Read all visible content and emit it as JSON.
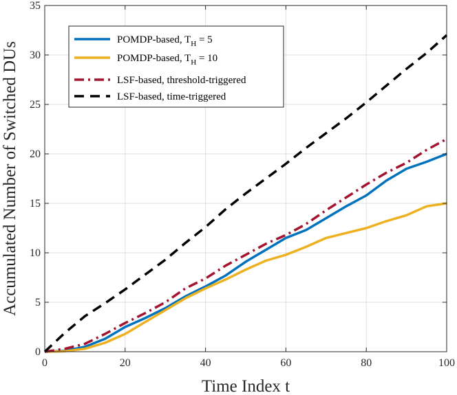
{
  "chart_data": {
    "type": "line",
    "title": "",
    "xlabel": "Time Index t",
    "ylabel": "Accumulated Number of Switched DUs",
    "xlim": [
      0,
      100
    ],
    "ylim": [
      0,
      35
    ],
    "xticks": [
      0,
      20,
      40,
      60,
      80,
      100
    ],
    "yticks": [
      0,
      5,
      10,
      15,
      20,
      25,
      30,
      35
    ],
    "grid": true,
    "legend_position": "top-left",
    "x": [
      0,
      5,
      10,
      15,
      20,
      25,
      30,
      35,
      40,
      45,
      50,
      55,
      60,
      65,
      70,
      75,
      80,
      85,
      90,
      95,
      100
    ],
    "series": [
      {
        "name": "POMDP-based, T_H = 5",
        "legend_main": "POMDP-based, T",
        "legend_sub": "H",
        "legend_tail": " = 5",
        "color": "#0072BD",
        "dash": "solid",
        "values": [
          0,
          0.1,
          0.5,
          1.3,
          2.5,
          3.4,
          4.4,
          5.6,
          6.6,
          7.7,
          9.1,
          10.3,
          11.5,
          12.3,
          13.5,
          14.7,
          15.8,
          17.3,
          18.5,
          19.2,
          20
        ]
      },
      {
        "name": "POMDP-based, T_H = 10",
        "legend_main": "POMDP-based, T",
        "legend_sub": "H",
        "legend_tail": " = 10",
        "color": "#EDB120",
        "dash": "solid",
        "values": [
          0,
          0.05,
          0.3,
          0.9,
          1.8,
          3.0,
          4.2,
          5.4,
          6.4,
          7.3,
          8.3,
          9.2,
          9.8,
          10.6,
          11.5,
          12.0,
          12.5,
          13.2,
          13.8,
          14.7,
          15
        ]
      },
      {
        "name": "LSF-based, threshold-triggered",
        "legend_main": "LSF-based, threshold-triggered",
        "legend_sub": "",
        "legend_tail": "",
        "color": "#A2142F",
        "dash": "dashdot",
        "values": [
          0,
          0.3,
          0.8,
          1.8,
          2.9,
          3.9,
          5.0,
          6.4,
          7.4,
          8.7,
          9.8,
          10.9,
          11.8,
          12.9,
          14.3,
          15.6,
          16.9,
          18.1,
          19.1,
          20.4,
          21.5
        ]
      },
      {
        "name": "LSF-based, time-triggered",
        "legend_main": "LSF-based, time-triggered",
        "legend_sub": "",
        "legend_tail": "",
        "color": "#000000",
        "dash": "dashed",
        "values": [
          0,
          1.9,
          3.6,
          4.9,
          6.3,
          7.8,
          9.3,
          11.0,
          12.6,
          14.4,
          16.0,
          17.5,
          19.0,
          20.6,
          22.1,
          23.6,
          25.2,
          26.9,
          28.6,
          30.2,
          32
        ]
      }
    ]
  }
}
